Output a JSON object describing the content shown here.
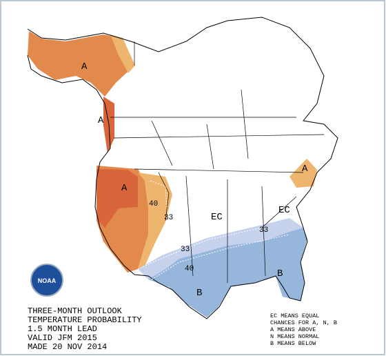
{
  "title_block": {
    "lines": [
      "THREE-MONTH OUTLOOK",
      "TEMPERATURE PROBABILITY",
      "1.5 MONTH LEAD",
      "VALID JFM 2015",
      "MADE 20 NOV 2014"
    ]
  },
  "legend": {
    "lines": [
      "EC MEANS EQUAL",
      "CHANCES FOR A, N, B",
      "A MEANS ABOVE",
      "N MEANS NORMAL",
      "B MEANS BELOW"
    ]
  },
  "logo": {
    "text": "NOAA"
  },
  "map_labels": [
    "A",
    "A",
    "A",
    "A",
    "40",
    "33",
    "EC",
    "EC",
    "33",
    "33",
    "40",
    "B",
    "B"
  ]
}
